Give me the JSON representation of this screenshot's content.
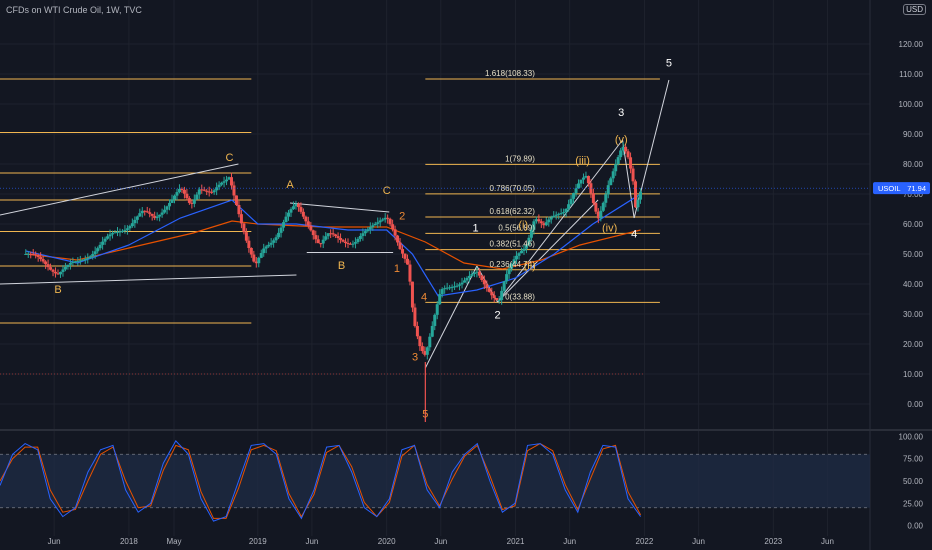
{
  "header": {
    "title": "CFDs on WTI Crude Oil, 1W, TVC",
    "currency": "USD"
  },
  "colors": {
    "bg": "#131722",
    "up": "#26a69a",
    "down": "#ef5350",
    "fib": "#f0b650",
    "wave": "#ffffff",
    "ema_fast": "#2962ff",
    "ema_slow": "#e65100",
    "stoch_k": "#2962ff",
    "stoch_d": "#e65100"
  },
  "chart_data": [
    {
      "type": "candlestick",
      "title": "",
      "ylim": [
        -8,
        128
      ],
      "y_ticks": [
        "120.00",
        "110.00",
        "100.00",
        "90.00",
        "80.00",
        "70.00",
        "60.00",
        "50.00",
        "40.00",
        "30.00",
        "20.00",
        "10.00",
        "0.00"
      ],
      "x_ticks": [
        "Jun",
        "2018",
        "May",
        "2019",
        "Jun",
        "2020",
        "Jun",
        "2021",
        "Jun",
        "2022",
        "Jun",
        "2023",
        "Jun"
      ],
      "last_price": {
        "label": "USOIL",
        "value": "71.94"
      },
      "price_path": [
        [
          2017.2,
          50.0
        ],
        [
          2017.35,
          47.0
        ],
        [
          2017.45,
          44.0
        ],
        [
          2017.5,
          45.0
        ],
        [
          2017.6,
          47.0
        ],
        [
          2017.75,
          52.0
        ],
        [
          2017.9,
          57.0
        ],
        [
          2018.0,
          60.0
        ],
        [
          2018.1,
          63.5
        ],
        [
          2018.2,
          62.0
        ],
        [
          2018.3,
          67.0
        ],
        [
          2018.4,
          71.0
        ],
        [
          2018.48,
          66.0
        ],
        [
          2018.55,
          73.0
        ],
        [
          2018.65,
          70.0
        ],
        [
          2018.75,
          74.0
        ],
        [
          2018.78,
          76.0
        ],
        [
          2018.85,
          65.0
        ],
        [
          2018.92,
          53.0
        ],
        [
          2018.98,
          45.0
        ],
        [
          2019.05,
          52.0
        ],
        [
          2019.15,
          57.0
        ],
        [
          2019.22,
          62.0
        ],
        [
          2019.3,
          66.0
        ],
        [
          2019.4,
          60.0
        ],
        [
          2019.48,
          53.0
        ],
        [
          2019.55,
          56.0
        ],
        [
          2019.65,
          55.0
        ],
        [
          2019.75,
          54.0
        ],
        [
          2019.85,
          57.0
        ],
        [
          2019.95,
          62.0
        ],
        [
          2020.0,
          63.5
        ],
        [
          2020.05,
          58.0
        ],
        [
          2020.1,
          51.0
        ],
        [
          2020.17,
          45.0
        ],
        [
          2020.21,
          28.0
        ],
        [
          2020.26,
          20.0
        ],
        [
          2020.3,
          17.0
        ],
        [
          2020.35,
          25.0
        ],
        [
          2020.42,
          37.0
        ],
        [
          2020.52,
          40.0
        ],
        [
          2020.62,
          42.0
        ],
        [
          2020.7,
          43.0
        ],
        [
          2020.75,
          40.0
        ],
        [
          2020.82,
          37.0
        ],
        [
          2020.87,
          35.0
        ],
        [
          2020.92,
          42.0
        ],
        [
          2021.0,
          48.0
        ],
        [
          2021.08,
          53.0
        ],
        [
          2021.15,
          63.0
        ],
        [
          2021.22,
          59.0
        ],
        [
          2021.3,
          62.0
        ],
        [
          2021.38,
          65.0
        ],
        [
          2021.45,
          71.0
        ],
        [
          2021.5,
          74.0
        ],
        [
          2021.55,
          75.0
        ],
        [
          2021.6,
          67.0
        ],
        [
          2021.64,
          62.0
        ],
        [
          2021.68,
          68.0
        ],
        [
          2021.72,
          74.0
        ],
        [
          2021.78,
          80.0
        ],
        [
          2021.83,
          85.0
        ],
        [
          2021.87,
          82.0
        ],
        [
          2021.91,
          75.0
        ],
        [
          2021.93,
          66.0
        ],
        [
          2021.97,
          72.0
        ]
      ],
      "wicks": [
        {
          "x": 2020.3,
          "low": -6.0
        }
      ],
      "fib_levels": [
        {
          "label": "1.618(108.33)",
          "value": 108.33
        },
        {
          "label": "1(79.89)",
          "value": 79.89
        },
        {
          "label": "0.786(70.05)",
          "value": 70.05
        },
        {
          "label": "0.618(62.32)",
          "value": 62.32
        },
        {
          "label": "0.5(56.89)",
          "value": 56.89
        },
        {
          "label": "0.382(51.46)",
          "value": 51.46
        },
        {
          "label": "0.236(44.74)",
          "value": 44.74
        },
        {
          "label": "0(33.88)",
          "value": 33.88
        }
      ],
      "left_levels": [
        108.33,
        90.5,
        77.0,
        68.0,
        57.5,
        46.0,
        27.0
      ],
      "bottom_level": 10.0,
      "wave_labels": [
        {
          "t": "B",
          "x": 2017.45,
          "y": 37.0,
          "c": "#f0b650"
        },
        {
          "t": "C",
          "x": 2018.78,
          "y": 81.0,
          "c": "#f0b650"
        },
        {
          "t": "A",
          "x": 2019.25,
          "y": 72.0,
          "c": "#f0b650"
        },
        {
          "t": "B",
          "x": 2019.65,
          "y": 45.0,
          "c": "#f0b650"
        },
        {
          "t": "C",
          "x": 2020.0,
          "y": 70.0,
          "c": "#f0b650"
        },
        {
          "t": "2",
          "x": 2020.12,
          "y": 61.5,
          "c": "#ef8a35"
        },
        {
          "t": "1",
          "x": 2020.08,
          "y": 44.0,
          "c": "#ef8a35"
        },
        {
          "t": "4",
          "x": 2020.29,
          "y": 34.5,
          "c": "#ef8a35"
        },
        {
          "t": "3",
          "x": 2020.22,
          "y": 14.5,
          "c": "#ef8a35"
        },
        {
          "t": "5",
          "x": 2020.3,
          "y": -4.5,
          "c": "#ef8a35"
        },
        {
          "t": "1",
          "x": 2020.69,
          "y": 57.5,
          "c": "#ffffff"
        },
        {
          "t": "2",
          "x": 2020.86,
          "y": 28.5,
          "c": "#ffffff"
        },
        {
          "t": "3",
          "x": 2021.82,
          "y": 96.0,
          "c": "#ffffff"
        },
        {
          "t": "4",
          "x": 2021.92,
          "y": 55.5,
          "c": "#ffffff"
        },
        {
          "t": "5",
          "x": 2022.19,
          "y": 112.5,
          "c": "#ffffff"
        },
        {
          "t": "(i)",
          "x": 2021.06,
          "y": 58.5,
          "c": "#f0b650"
        },
        {
          "t": "(ii)",
          "x": 2021.11,
          "y": 45.0,
          "c": "#f0b650"
        },
        {
          "t": "(iii)",
          "x": 2021.52,
          "y": 80.0,
          "c": "#f0b650"
        },
        {
          "t": "(iv)",
          "x": 2021.73,
          "y": 57.5,
          "c": "#f0b650"
        },
        {
          "t": "(v)",
          "x": 2021.82,
          "y": 87.0,
          "c": "#f0b650"
        }
      ],
      "ema_fast": [
        [
          2017.2,
          51
        ],
        [
          2017.6,
          47
        ],
        [
          2018.0,
          53
        ],
        [
          2018.4,
          62
        ],
        [
          2018.8,
          68
        ],
        [
          2019.0,
          60
        ],
        [
          2019.3,
          60
        ],
        [
          2019.7,
          58
        ],
        [
          2020.0,
          58
        ],
        [
          2020.2,
          50
        ],
        [
          2020.4,
          36
        ],
        [
          2020.7,
          38
        ],
        [
          2021.0,
          42
        ],
        [
          2021.3,
          50
        ],
        [
          2021.6,
          60
        ],
        [
          2021.97,
          70
        ]
      ],
      "ema_slow": [
        [
          2017.2,
          50
        ],
        [
          2017.6,
          48
        ],
        [
          2018.0,
          52
        ],
        [
          2018.5,
          57
        ],
        [
          2018.8,
          61
        ],
        [
          2019.0,
          60
        ],
        [
          2019.5,
          59
        ],
        [
          2020.0,
          59
        ],
        [
          2020.3,
          54
        ],
        [
          2020.6,
          47
        ],
        [
          2020.9,
          45
        ],
        [
          2021.2,
          48
        ],
        [
          2021.5,
          53
        ],
        [
          2021.97,
          58
        ]
      ]
    },
    {
      "type": "line",
      "title": "",
      "ylim": [
        -5,
        105
      ],
      "y_ticks": [
        "100.00",
        "75.00",
        "50.00",
        "25.00",
        "0.00"
      ],
      "band": [
        20,
        80
      ],
      "series": [
        {
          "values": [
            45,
            80,
            92,
            85,
            30,
            10,
            20,
            60,
            85,
            90,
            40,
            15,
            25,
            70,
            95,
            80,
            30,
            5,
            10,
            50,
            90,
            92,
            80,
            30,
            8,
            40,
            88,
            90,
            60,
            20,
            10,
            30,
            85,
            90,
            40,
            20,
            60,
            80,
            92,
            50,
            15,
            25,
            90,
            92,
            80,
            40,
            15,
            60,
            90,
            88,
            30,
            10
          ]
        },
        {
          "values": [
            50,
            75,
            88,
            88,
            40,
            15,
            18,
            50,
            80,
            88,
            50,
            20,
            22,
            62,
            90,
            85,
            38,
            8,
            8,
            42,
            85,
            90,
            84,
            36,
            10,
            35,
            82,
            90,
            66,
            26,
            10,
            26,
            78,
            90,
            46,
            22,
            52,
            78,
            90,
            56,
            18,
            22,
            84,
            92,
            84,
            46,
            18,
            52,
            86,
            90,
            38,
            12
          ]
        }
      ]
    }
  ]
}
